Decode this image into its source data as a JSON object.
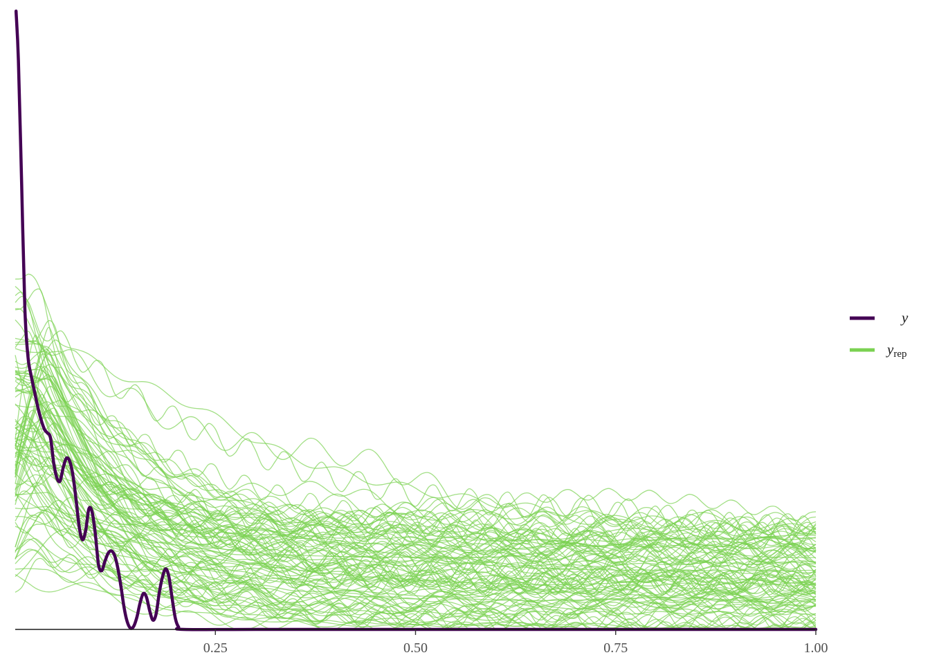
{
  "chart_data": {
    "type": "line",
    "title": "",
    "xlabel": "",
    "ylabel": "",
    "xlim": [
      0,
      1.0
    ],
    "ylim": [
      0,
      1
    ],
    "x_ticks": [
      {
        "value": 0.25,
        "label": "0.25"
      },
      {
        "value": 0.5,
        "label": "0.50"
      },
      {
        "value": 0.75,
        "label": "0.75"
      },
      {
        "value": 1.0,
        "label": "1.00"
      }
    ],
    "grid": false,
    "legend": {
      "placement": "right",
      "entries": [
        {
          "key": "y",
          "label": "y",
          "sub": "",
          "color": "#440154"
        },
        {
          "key": "yrep",
          "label": "y",
          "sub": "rep",
          "color": "#7AD151"
        }
      ]
    },
    "series_y": {
      "name": "y",
      "color": "#440154",
      "points": [
        [
          0.001,
          1.0
        ],
        [
          0.004,
          0.92
        ],
        [
          0.008,
          0.72
        ],
        [
          0.012,
          0.52
        ],
        [
          0.016,
          0.44
        ],
        [
          0.02,
          0.41
        ],
        [
          0.024,
          0.385
        ],
        [
          0.03,
          0.35
        ],
        [
          0.036,
          0.325
        ],
        [
          0.04,
          0.318
        ],
        [
          0.044,
          0.31
        ],
        [
          0.048,
          0.27
        ],
        [
          0.052,
          0.245
        ],
        [
          0.056,
          0.24
        ],
        [
          0.06,
          0.262
        ],
        [
          0.064,
          0.277
        ],
        [
          0.068,
          0.272
        ],
        [
          0.072,
          0.25
        ],
        [
          0.076,
          0.21
        ],
        [
          0.08,
          0.165
        ],
        [
          0.084,
          0.145
        ],
        [
          0.088,
          0.16
        ],
        [
          0.092,
          0.195
        ],
        [
          0.096,
          0.19
        ],
        [
          0.1,
          0.155
        ],
        [
          0.104,
          0.105
        ],
        [
          0.108,
          0.095
        ],
        [
          0.112,
          0.11
        ],
        [
          0.116,
          0.123
        ],
        [
          0.12,
          0.127
        ],
        [
          0.124,
          0.12
        ],
        [
          0.128,
          0.1
        ],
        [
          0.132,
          0.07
        ],
        [
          0.136,
          0.035
        ],
        [
          0.14,
          0.012
        ],
        [
          0.144,
          0.002
        ],
        [
          0.148,
          0.005
        ],
        [
          0.152,
          0.02
        ],
        [
          0.156,
          0.043
        ],
        [
          0.16,
          0.058
        ],
        [
          0.164,
          0.052
        ],
        [
          0.168,
          0.03
        ],
        [
          0.172,
          0.015
        ],
        [
          0.176,
          0.025
        ],
        [
          0.18,
          0.06
        ],
        [
          0.184,
          0.085
        ],
        [
          0.188,
          0.098
        ],
        [
          0.192,
          0.085
        ],
        [
          0.196,
          0.05
        ],
        [
          0.2,
          0.018
        ],
        [
          0.204,
          0.004
        ],
        [
          0.21,
          0.0
        ],
        [
          0.3,
          0.0
        ],
        [
          0.5,
          0.0
        ],
        [
          0.75,
          0.0
        ],
        [
          1.0,
          0.0
        ]
      ]
    },
    "series_yrep": {
      "name": "y",
      "color": "#7AD151",
      "count": 100,
      "description_only_in_script": true
    }
  }
}
